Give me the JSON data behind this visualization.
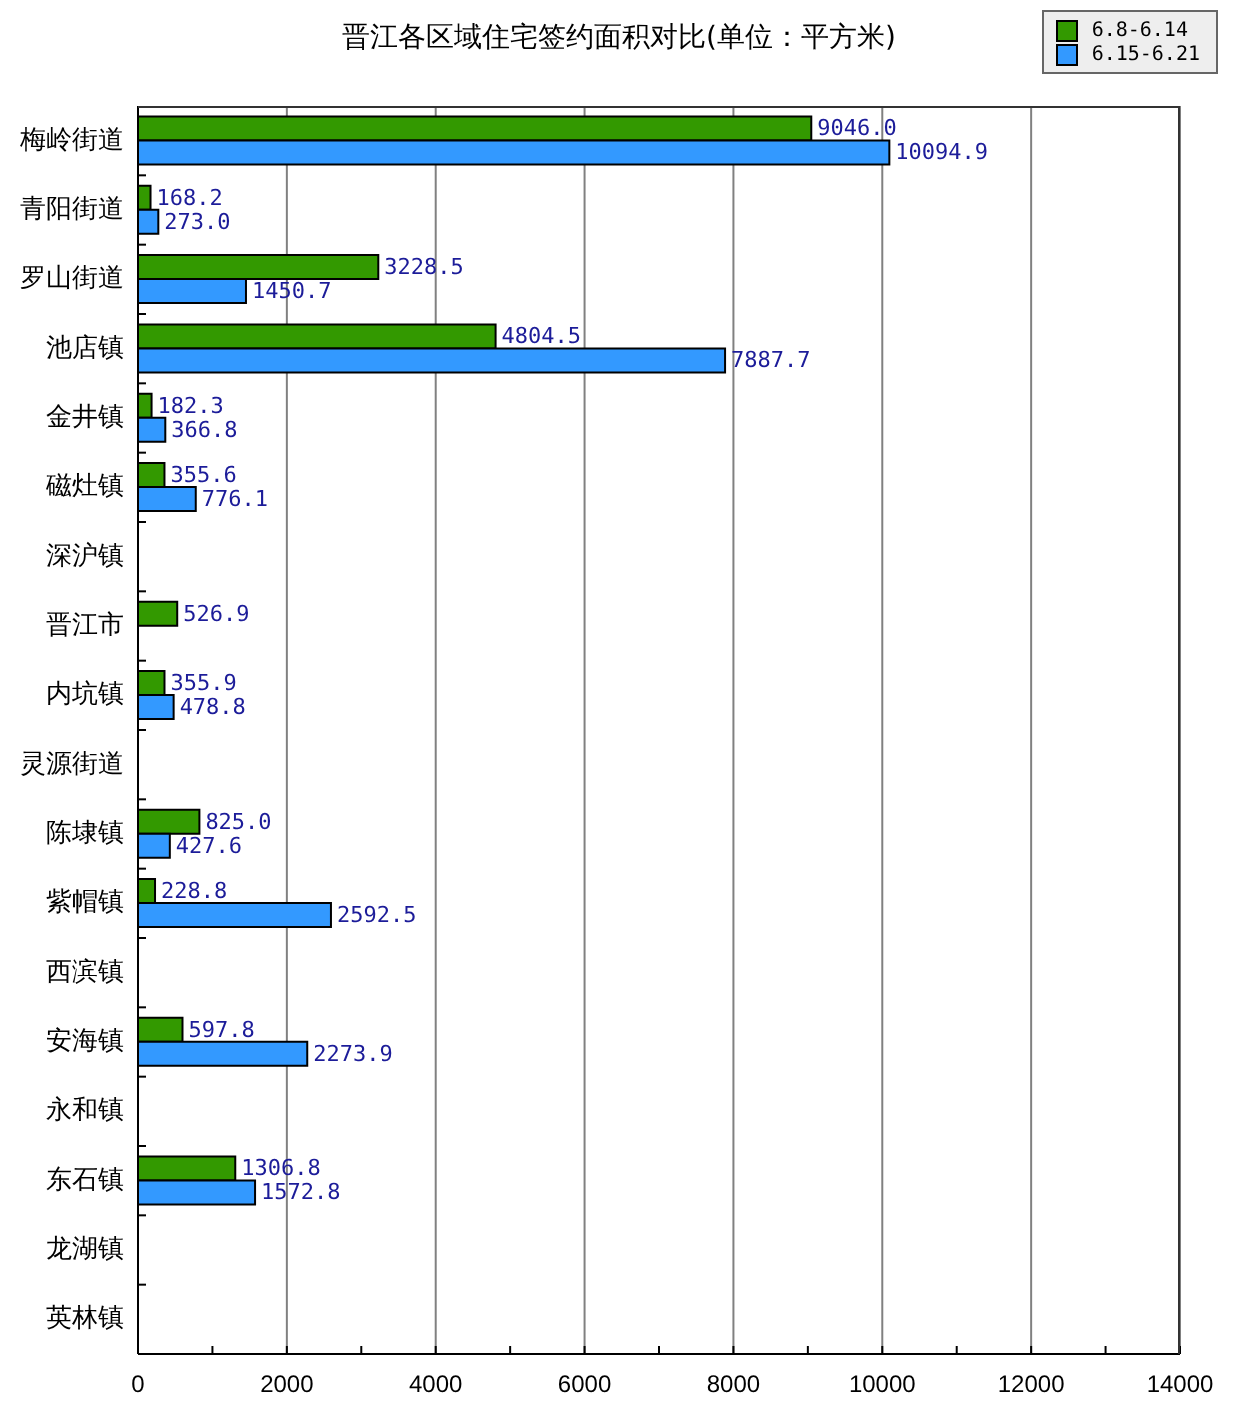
{
  "chart_data": {
    "type": "bar",
    "orientation": "horizontal",
    "title": "晋江各区域住宅签约面积对比(单位：平方米)",
    "categories": [
      "梅岭街道",
      "青阳街道",
      "罗山街道",
      "池店镇",
      "金井镇",
      "磁灶镇",
      "深沪镇",
      "晋江市",
      "内坑镇",
      "灵源街道",
      "陈埭镇",
      "紫帽镇",
      "西滨镇",
      "安海镇",
      "永和镇",
      "东石镇",
      "龙湖镇",
      "英林镇"
    ],
    "series": [
      {
        "name": "6.8-6.14",
        "color": "#339900",
        "values": [
          9046.0,
          168.2,
          3228.5,
          4804.5,
          182.3,
          355.6,
          null,
          526.9,
          355.9,
          null,
          825.0,
          228.8,
          null,
          597.8,
          null,
          1306.8,
          null,
          null
        ],
        "value_labels": [
          "9046.0",
          "168.2",
          "3228.5",
          "4804.5",
          "182.3",
          "355.6",
          null,
          "526.9",
          "355.9",
          null,
          "825.0",
          "228.8",
          null,
          "597.8",
          null,
          "1306.8",
          null,
          null
        ]
      },
      {
        "name": "6.15-6.21",
        "color": "#3399ff",
        "values": [
          10094.9,
          273.0,
          1450.7,
          7887.7,
          366.8,
          776.1,
          null,
          null,
          478.8,
          null,
          427.6,
          2592.5,
          null,
          2273.9,
          null,
          1572.8,
          null,
          null
        ],
        "value_labels": [
          "10094.9",
          "273.0",
          "1450.7",
          "7887.7",
          "366.8",
          "776.1",
          null,
          null,
          "478.8",
          null,
          "427.6",
          "2592.5",
          null,
          "2273.9",
          null,
          "1572.8",
          null,
          null
        ]
      }
    ],
    "xlim": [
      0,
      14000
    ],
    "xticks": [
      0,
      {
        "value": 1000,
        "label": null
      },
      2000,
      {
        "value": 3000,
        "label": null
      },
      4000,
      {
        "value": 5000,
        "label": null
      },
      6000,
      {
        "value": 7000,
        "label": null
      },
      8000,
      {
        "value": 9000,
        "label": null
      },
      10000,
      {
        "value": 11000,
        "label": null
      },
      12000,
      {
        "value": 13000,
        "label": null
      },
      14000
    ],
    "grid": "x",
    "legend": "top right"
  }
}
